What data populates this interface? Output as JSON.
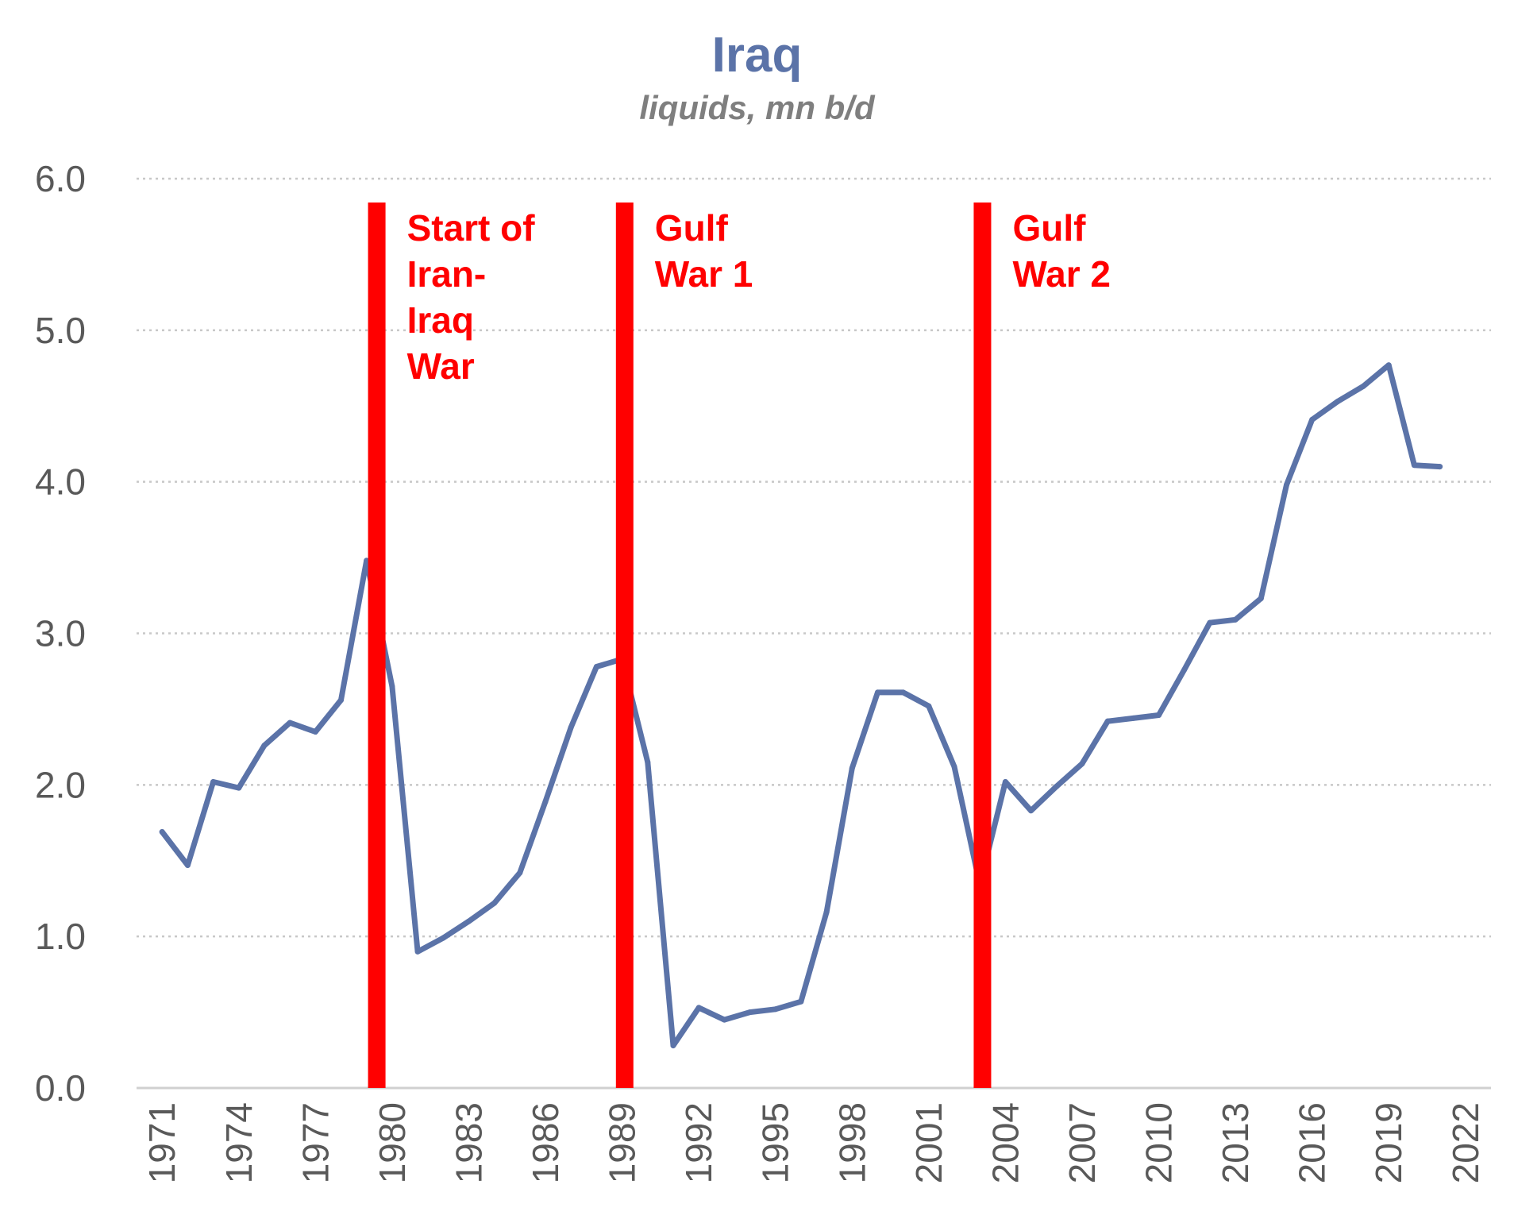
{
  "chart_data": {
    "type": "line",
    "title": "Iraq",
    "subtitle": "liquids, mn b/d",
    "xlabel": "",
    "ylabel": "",
    "ylim": [
      0,
      6
    ],
    "yticks": [
      "0.0",
      "1.0",
      "2.0",
      "3.0",
      "4.0",
      "5.0",
      "6.0"
    ],
    "xticks": [
      "1971",
      "1974",
      "1977",
      "1980",
      "1983",
      "1986",
      "1989",
      "1992",
      "1995",
      "1998",
      "2001",
      "2004",
      "2007",
      "2010",
      "2013",
      "2016",
      "2019",
      "2022"
    ],
    "grid": "horizontal dotted",
    "line_color": "#5b73a8",
    "event_color": "#ff0000",
    "x": [
      1971,
      1972,
      1973,
      1974,
      1975,
      1976,
      1977,
      1978,
      1979,
      1980,
      1981,
      1982,
      1983,
      1984,
      1985,
      1986,
      1987,
      1988,
      1989,
      1990,
      1991,
      1992,
      1993,
      1994,
      1995,
      1996,
      1997,
      1998,
      1999,
      2000,
      2001,
      2002,
      2003,
      2004,
      2005,
      2006,
      2007,
      2008,
      2009,
      2010,
      2011,
      2012,
      2013,
      2014,
      2015,
      2016,
      2017,
      2018,
      2019,
      2020,
      2021
    ],
    "series": [
      {
        "values": [
          1.69,
          1.47,
          2.02,
          1.98,
          2.26,
          2.41,
          2.35,
          2.56,
          3.48,
          2.65,
          0.9,
          0.99,
          1.1,
          1.22,
          1.42,
          1.89,
          2.38,
          2.78,
          2.83,
          2.15,
          0.28,
          0.53,
          0.45,
          0.5,
          0.52,
          0.57,
          1.16,
          2.11,
          2.61,
          2.61,
          2.52,
          2.12,
          1.34,
          2.02,
          1.83,
          1.99,
          2.14,
          2.42,
          2.44,
          2.46,
          2.76,
          3.07,
          3.09,
          3.23,
          3.98,
          4.41,
          4.53,
          4.63,
          4.77,
          4.11,
          4.1
        ]
      }
    ],
    "annotations": [
      {
        "x": 1979.4,
        "lines": [
          "Start of",
          "Iran-",
          "Iraq",
          "War"
        ]
      },
      {
        "x": 1989.1,
        "lines": [
          "Gulf",
          "War 1"
        ]
      },
      {
        "x": 2003.1,
        "lines": [
          "Gulf",
          "War 2"
        ]
      }
    ]
  }
}
